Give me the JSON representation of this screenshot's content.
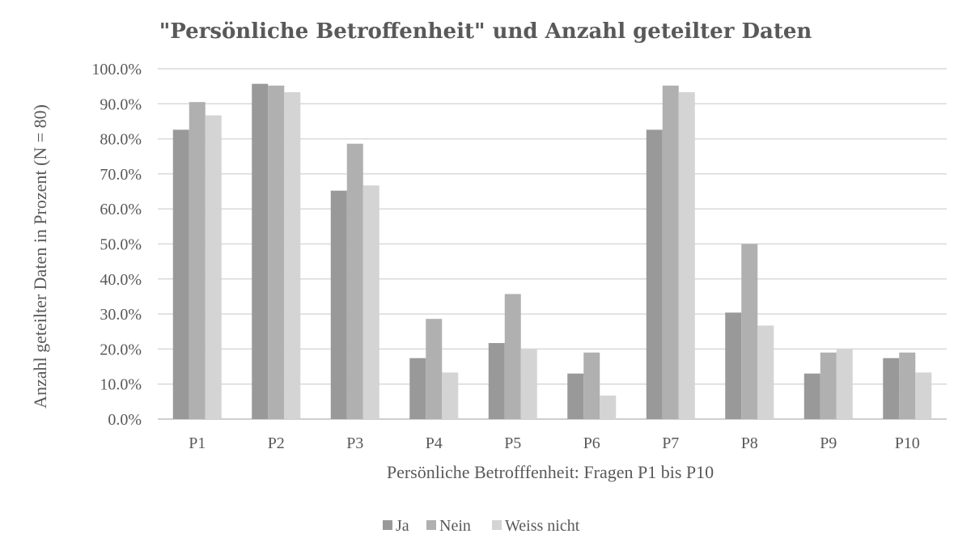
{
  "chart_data": {
    "type": "bar",
    "title": "\"Persönliche Betroffenheit\" und Anzahl geteilter Daten",
    "xlabel": "Persönliche Betrofffenheit: Fragen P1 bis P10",
    "ylabel": "Anzahl geteilter Daten in Prozent (N = 80)",
    "categories": [
      "P1",
      "P2",
      "P3",
      "P4",
      "P5",
      "P6",
      "P7",
      "P8",
      "P9",
      "P10"
    ],
    "series": [
      {
        "name": "Ja",
        "color": "#999999",
        "values": [
          82.6,
          95.7,
          65.2,
          17.4,
          21.7,
          13.0,
          82.6,
          30.4,
          13.0,
          17.4
        ]
      },
      {
        "name": "Nein",
        "color": "#b0b0b0",
        "values": [
          90.5,
          95.2,
          78.6,
          28.6,
          35.7,
          19.0,
          95.2,
          50.0,
          19.0,
          19.0
        ]
      },
      {
        "name": "Weiss nicht",
        "color": "#d4d4d4",
        "values": [
          86.7,
          93.3,
          66.7,
          13.3,
          20.0,
          6.7,
          93.3,
          26.7,
          20.0,
          13.3
        ]
      }
    ],
    "ylim": [
      0,
      100
    ],
    "yticks": [
      "0.0%",
      "10.0%",
      "20.0%",
      "30.0%",
      "40.0%",
      "50.0%",
      "60.0%",
      "70.0%",
      "80.0%",
      "90.0%",
      "100.0%"
    ],
    "grid": true,
    "legend": "bottom"
  }
}
